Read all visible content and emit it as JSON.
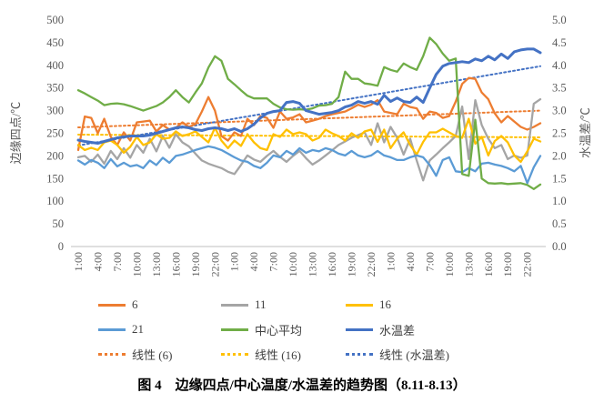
{
  "caption": "图 4　边缘四点/中心温度/水温差的趋势图（8.11-8.13）",
  "colors": {
    "axis_line": "#BFBFBF",
    "tick_text": "#595959",
    "series_6": "#ED7D31",
    "series_11": "#A5A5A5",
    "series_16": "#FFC000",
    "series_21": "#5B9BD5",
    "series_center_avg": "#70AD47",
    "series_water_temp_diff": "#4472C4"
  },
  "legend": {
    "items": [
      {
        "label": "6",
        "color": "#ED7D31",
        "dashed": false
      },
      {
        "label": "11",
        "color": "#A5A5A5",
        "dashed": false
      },
      {
        "label": "16",
        "color": "#FFC000",
        "dashed": false
      },
      {
        "label": "21",
        "color": "#5B9BD5",
        "dashed": false
      },
      {
        "label": "中心平均",
        "color": "#70AD47",
        "dashed": false
      },
      {
        "label": "水温差",
        "color": "#4472C4",
        "dashed": false
      },
      {
        "label": "线性 (6)",
        "color": "#ED7D31",
        "dashed": true
      },
      {
        "label": "线性 (16)",
        "color": "#FFC000",
        "dashed": true
      },
      {
        "label": "线性 (水温差)",
        "color": "#4472C4",
        "dashed": true
      }
    ]
  },
  "chart_data": {
    "type": "line",
    "title": "",
    "caption": "图 4　边缘四点/中心温度/水温差的趋势图（8.11-8.13）",
    "legend_position": "bottom",
    "grid": false,
    "points_per_series": 72,
    "left_axis": {
      "label": "边缘四点/℃",
      "min": 0,
      "max": 500,
      "step": 50,
      "ticks": [
        "0",
        "50",
        "100",
        "150",
        "200",
        "250",
        "300",
        "350",
        "400",
        "450",
        "500"
      ]
    },
    "right_axis": {
      "label": "水温差/℃",
      "min": 0,
      "max": 5,
      "step": 0.5,
      "ticks": [
        "0.0",
        "0.5",
        "1.0",
        "1.5",
        "2.0",
        "2.5",
        "3.0",
        "3.5",
        "4.0",
        "4.5",
        "5.0"
      ]
    },
    "x_tick_labels": [
      "1:00",
      "4:00",
      "7:00",
      "10:00",
      "13:00",
      "16:00",
      "19:00",
      "22:00",
      "1:00",
      "4:00",
      "7:00",
      "10:00",
      "13:00",
      "16:00",
      "19:00",
      "22:00",
      "1:00",
      "4:00",
      "7:00",
      "10:00",
      "13:00",
      "16:00",
      "19:00",
      "22:00"
    ],
    "x_tick_every_n_points": 3,
    "series": [
      {
        "name": "6",
        "color": "#ED7D31",
        "axis": "left",
        "width": 2.3,
        "values": [
          213,
          287,
          284,
          250,
          282,
          242,
          224,
          252,
          234,
          274,
          276,
          278,
          254,
          268,
          258,
          262,
          274,
          264,
          270,
          298,
          330,
          300,
          244,
          234,
          252,
          244,
          282,
          268,
          288,
          284,
          262,
          298,
          282,
          285,
          292,
          274,
          278,
          282,
          288,
          292,
          295,
          298,
          305,
          313,
          308,
          313,
          323,
          298,
          295,
          292,
          315,
          308,
          305,
          282,
          298,
          295,
          284,
          288,
          320,
          359,
          372,
          370,
          340,
          325,
          294,
          274,
          288,
          276,
          264,
          258,
          264,
          272
        ]
      },
      {
        "name": "11",
        "color": "#A5A5A5",
        "axis": "left",
        "width": 2.3,
        "values": [
          197,
          200,
          187,
          203,
          183,
          211,
          193,
          217,
          196,
          224,
          207,
          238,
          210,
          244,
          218,
          248,
          230,
          221,
          205,
          190,
          183,
          178,
          173,
          165,
          160,
          180,
          201,
          192,
          187,
          200,
          211,
          198,
          187,
          200,
          211,
          195,
          181,
          190,
          201,
          212,
          224,
          232,
          240,
          246,
          252,
          224,
          272,
          230,
          264,
          240,
          203,
          238,
          190,
          146,
          190,
          203,
          217,
          230,
          244,
          309,
          193,
          323,
          268,
          238,
          217,
          224,
          193,
          201,
          196,
          201,
          315,
          325
        ]
      },
      {
        "name": "16",
        "color": "#FFC000",
        "axis": "left",
        "width": 2.3,
        "values": [
          224,
          213,
          218,
          213,
          230,
          234,
          224,
          207,
          220,
          242,
          224,
          230,
          248,
          238,
          240,
          254,
          244,
          248,
          254,
          242,
          230,
          262,
          234,
          217,
          234,
          222,
          248,
          230,
          217,
          213,
          248,
          242,
          258,
          248,
          252,
          248,
          234,
          240,
          258,
          250,
          244,
          234,
          250,
          240,
          254,
          258,
          231,
          258,
          217,
          238,
          252,
          224,
          203,
          231,
          252,
          252,
          260,
          252,
          244,
          240,
          282,
          227,
          242,
          201,
          233,
          244,
          230,
          201,
          187,
          210,
          238,
          232
        ]
      },
      {
        "name": "21",
        "color": "#5B9BD5",
        "axis": "left",
        "width": 2.3,
        "values": [
          190,
          181,
          191,
          185,
          173,
          193,
          177,
          185,
          177,
          180,
          173,
          190,
          180,
          196,
          185,
          200,
          203,
          208,
          213,
          217,
          221,
          218,
          213,
          205,
          197,
          190,
          187,
          178,
          173,
          185,
          201,
          197,
          211,
          203,
          217,
          207,
          213,
          210,
          217,
          213,
          205,
          201,
          211,
          201,
          197,
          201,
          211,
          201,
          197,
          191,
          191,
          197,
          201,
          197,
          180,
          156,
          191,
          197,
          166,
          164,
          173,
          166,
          183,
          185,
          181,
          178,
          173,
          166,
          178,
          140,
          175,
          200
        ]
      },
      {
        "name": "中心平均",
        "color": "#70AD47",
        "axis": "left",
        "width": 2.3,
        "values": [
          345,
          338,
          330,
          322,
          312,
          315,
          316,
          314,
          310,
          305,
          300,
          305,
          310,
          318,
          330,
          345,
          330,
          318,
          340,
          360,
          395,
          420,
          410,
          370,
          358,
          345,
          333,
          327,
          327,
          327,
          315,
          307,
          303,
          302,
          303,
          302,
          305,
          311,
          312,
          315,
          330,
          386,
          370,
          370,
          360,
          358,
          355,
          396,
          390,
          386,
          404,
          396,
          390,
          420,
          461,
          447,
          426,
          410,
          415,
          160,
          156,
          280,
          150,
          140,
          139,
          140,
          138,
          139,
          140,
          136,
          127,
          137
        ]
      },
      {
        "name": "水温差",
        "color": "#4472C4",
        "axis": "right",
        "width": 3,
        "values": [
          2.35,
          2.32,
          2.3,
          2.28,
          2.32,
          2.36,
          2.4,
          2.42,
          2.44,
          2.44,
          2.44,
          2.46,
          2.5,
          2.54,
          2.58,
          2.62,
          2.64,
          2.62,
          2.58,
          2.56,
          2.6,
          2.62,
          2.6,
          2.56,
          2.6,
          2.54,
          2.6,
          2.7,
          2.84,
          2.94,
          2.98,
          3.0,
          3.18,
          3.2,
          3.16,
          3.0,
          2.96,
          2.92,
          2.94,
          2.96,
          3.0,
          3.08,
          3.12,
          3.2,
          3.16,
          3.2,
          3.14,
          3.34,
          3.2,
          3.28,
          3.2,
          3.18,
          3.3,
          3.18,
          3.5,
          3.8,
          3.98,
          4.04,
          4.06,
          4.08,
          4.06,
          4.14,
          4.1,
          4.2,
          4.12,
          4.25,
          4.15,
          4.3,
          4.34,
          4.36,
          4.36,
          4.28
        ]
      }
    ],
    "trendlines": [
      {
        "name": "线性 (6)",
        "color": "#ED7D31",
        "axis": "left",
        "start": 263,
        "end": 300
      },
      {
        "name": "线性 (16)",
        "color": "#FFC000",
        "axis": "left",
        "start": 247,
        "end": 241
      },
      {
        "name": "线性 (水温差)",
        "color": "#4472C4",
        "axis": "right",
        "start": 2.23,
        "end": 3.98
      }
    ]
  }
}
